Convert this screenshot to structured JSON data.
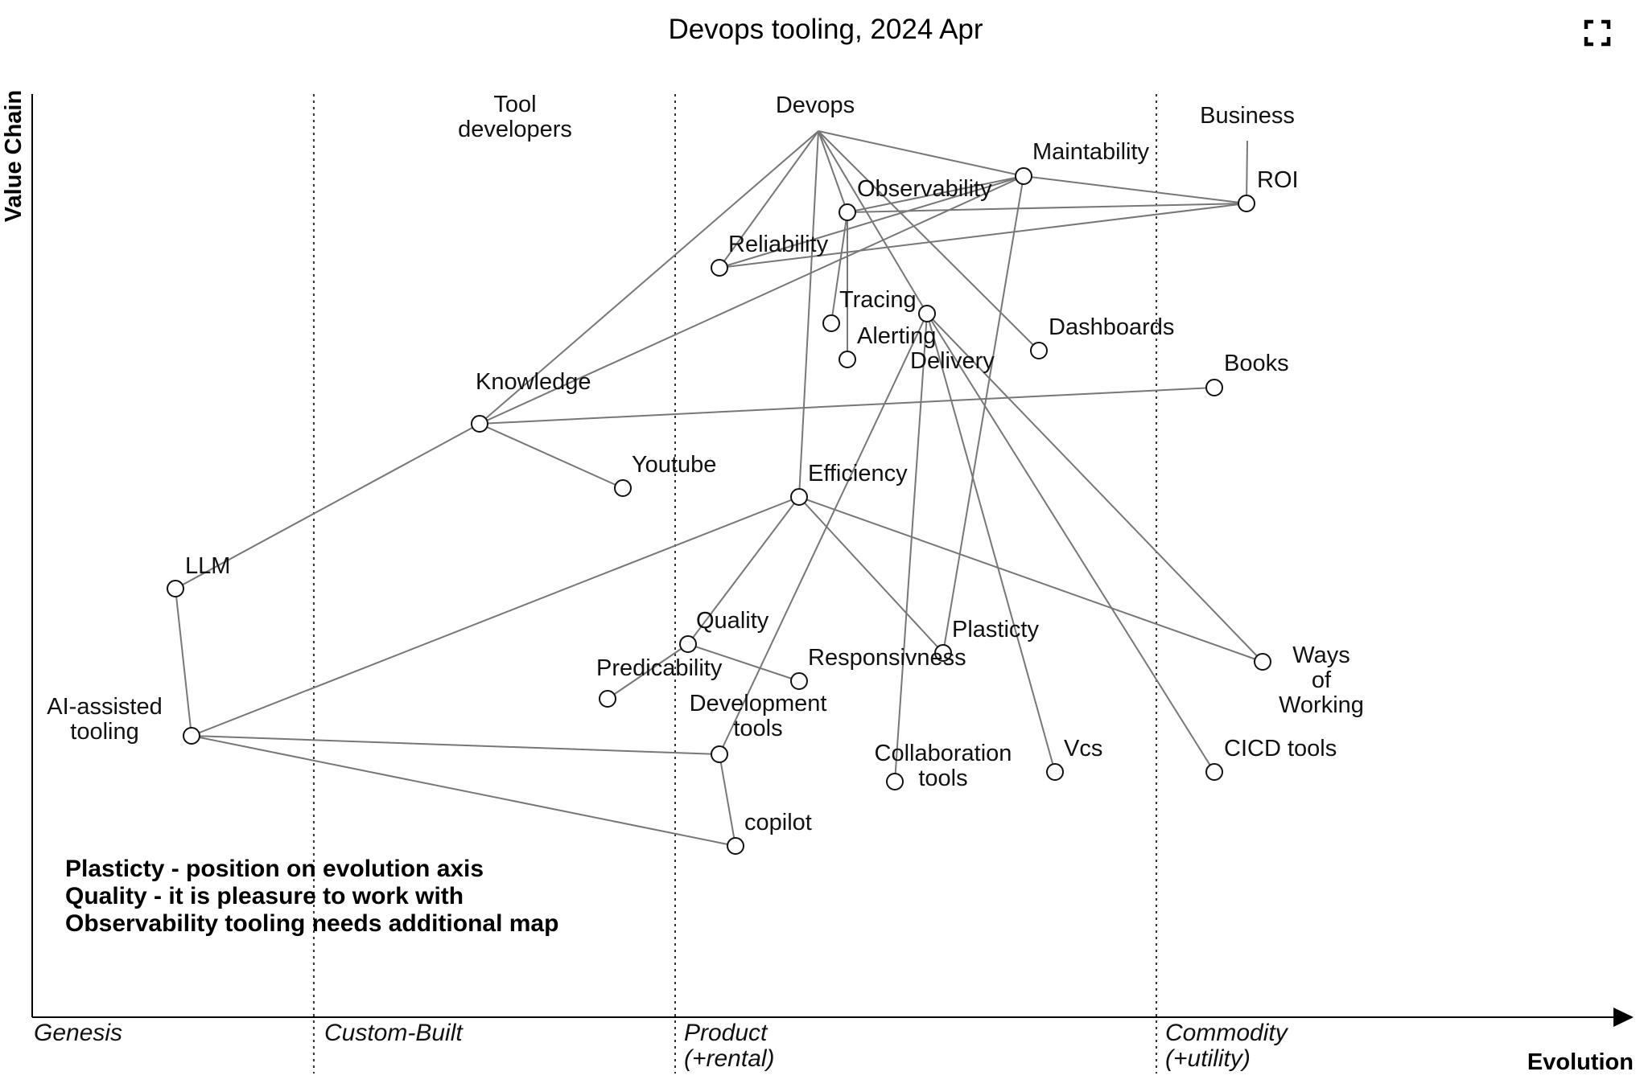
{
  "title": "Devops tooling, 2024 Apr",
  "axes": {
    "y_label": "Value Chain",
    "x_label": "Evolution"
  },
  "stages": [
    {
      "id": "genesis",
      "lines": [
        "Genesis"
      ]
    },
    {
      "id": "custom-built",
      "lines": [
        "Custom-Built"
      ]
    },
    {
      "id": "product",
      "lines": [
        "Product",
        "(+rental)"
      ]
    },
    {
      "id": "commodity",
      "lines": [
        "Commodity",
        "(+utility)"
      ]
    }
  ],
  "anchors": [
    {
      "id": "tool-developers",
      "lines": [
        "Tool",
        "developers"
      ]
    },
    {
      "id": "devops",
      "lines": [
        "Devops"
      ]
    },
    {
      "id": "business",
      "lines": [
        "Business"
      ]
    }
  ],
  "components": [
    {
      "id": "maintability",
      "lines": [
        "Maintability"
      ]
    },
    {
      "id": "roi",
      "lines": [
        "ROI"
      ]
    },
    {
      "id": "observability",
      "lines": [
        "Observability"
      ]
    },
    {
      "id": "reliability",
      "lines": [
        "Reliability"
      ]
    },
    {
      "id": "tracing",
      "lines": [
        "Tracing"
      ]
    },
    {
      "id": "alerting",
      "lines": [
        "Alerting"
      ]
    },
    {
      "id": "delivery",
      "lines": [
        "Delivery"
      ]
    },
    {
      "id": "dashboards",
      "lines": [
        "Dashboards"
      ]
    },
    {
      "id": "books",
      "lines": [
        "Books"
      ]
    },
    {
      "id": "knowledge",
      "lines": [
        "Knowledge"
      ]
    },
    {
      "id": "youtube",
      "lines": [
        "Youtube"
      ]
    },
    {
      "id": "efficiency",
      "lines": [
        "Efficiency"
      ]
    },
    {
      "id": "llm",
      "lines": [
        "LLM"
      ]
    },
    {
      "id": "quality",
      "lines": [
        "Quality"
      ]
    },
    {
      "id": "predicability",
      "lines": [
        "Predicability"
      ]
    },
    {
      "id": "responsivness",
      "lines": [
        "Responsivness"
      ]
    },
    {
      "id": "plasticty",
      "lines": [
        "Plasticty"
      ]
    },
    {
      "id": "ways-of-working",
      "lines": [
        "Ways",
        "of",
        "Working"
      ]
    },
    {
      "id": "ai-assisted-tooling",
      "lines": [
        "AI-assisted",
        "tooling"
      ]
    },
    {
      "id": "development-tools",
      "lines": [
        "Development",
        "tools"
      ]
    },
    {
      "id": "collaboration-tools",
      "lines": [
        "Collaboration",
        "tools"
      ]
    },
    {
      "id": "vcs",
      "lines": [
        "Vcs"
      ]
    },
    {
      "id": "cicd-tools",
      "lines": [
        "CICD tools"
      ]
    },
    {
      "id": "copilot",
      "lines": [
        "copilot"
      ]
    }
  ],
  "links": [
    [
      "business",
      "roi"
    ],
    [
      "devops",
      "maintability"
    ],
    [
      "devops",
      "reliability"
    ],
    [
      "devops",
      "observability"
    ],
    [
      "devops",
      "delivery"
    ],
    [
      "devops",
      "dashboards"
    ],
    [
      "devops",
      "knowledge"
    ],
    [
      "devops",
      "efficiency"
    ],
    [
      "maintability",
      "roi"
    ],
    [
      "maintability",
      "observability"
    ],
    [
      "maintability",
      "reliability"
    ],
    [
      "maintability",
      "knowledge"
    ],
    [
      "maintability",
      "plasticty"
    ],
    [
      "observability",
      "roi"
    ],
    [
      "reliability",
      "roi"
    ],
    [
      "observability",
      "tracing"
    ],
    [
      "observability",
      "alerting"
    ],
    [
      "delivery",
      "collaboration-tools"
    ],
    [
      "delivery",
      "vcs"
    ],
    [
      "delivery",
      "cicd-tools"
    ],
    [
      "delivery",
      "ways-of-working"
    ],
    [
      "delivery",
      "development-tools"
    ],
    [
      "knowledge",
      "books"
    ],
    [
      "knowledge",
      "youtube"
    ],
    [
      "llm",
      "knowledge"
    ],
    [
      "llm",
      "ai-assisted-tooling"
    ],
    [
      "efficiency",
      "quality"
    ],
    [
      "efficiency",
      "plasticty"
    ],
    [
      "efficiency",
      "ways-of-working"
    ],
    [
      "efficiency",
      "ai-assisted-tooling"
    ],
    [
      "quality",
      "predicability"
    ],
    [
      "quality",
      "responsivness"
    ],
    [
      "ai-assisted-tooling",
      "development-tools"
    ],
    [
      "ai-assisted-tooling",
      "copilot"
    ],
    [
      "development-tools",
      "copilot"
    ]
  ],
  "notes": [
    "Plasticty - position on evolution axis",
    "Quality - it is pleasure to work with",
    "Observability tooling needs additional map"
  ],
  "fullscreen_icon": "fullscreen-icon"
}
